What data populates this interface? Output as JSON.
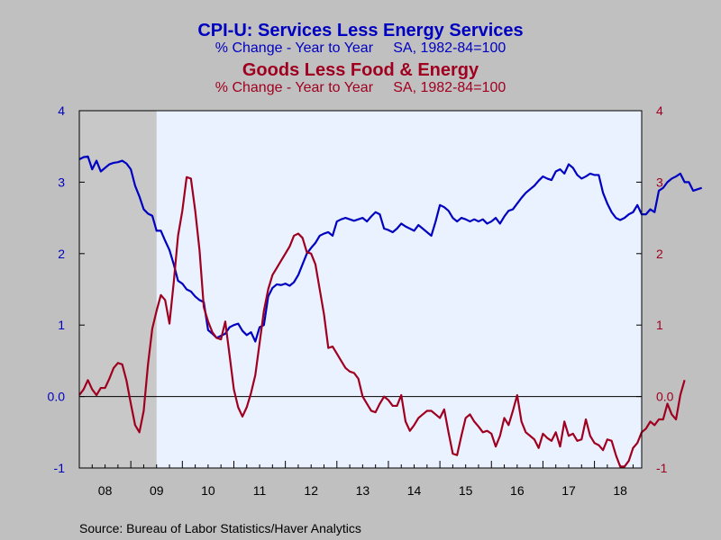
{
  "chart_data": {
    "type": "line",
    "source": "Source:  Bureau of Labor Statistics/Haver Analytics",
    "colors": {
      "services": "#0000c0",
      "goods": "#a00020",
      "recession": "#c8c8c8",
      "plot_bg": "#eaf2ff",
      "page_bg": "#c0c0c0"
    },
    "recession": {
      "start": 2008.0,
      "end": 2009.5
    },
    "xlim": [
      2008.0,
      2018.917
    ],
    "ylim": [
      -1,
      4
    ],
    "y_ticks": [
      4,
      3,
      2,
      1,
      0,
      -1
    ],
    "y_tick_labels": [
      "4",
      "3",
      "2",
      "1",
      "0.0",
      "-1"
    ],
    "x_tick_labels": [
      "08",
      "09",
      "10",
      "11",
      "12",
      "13",
      "14",
      "15",
      "16",
      "17",
      "18"
    ],
    "series": [
      {
        "key": "services",
        "title": "CPI-U: Services Less Energy Services",
        "subtitle": "% Change - Year to Year     SA, 1982-84=100",
        "axis": "left",
        "values": [
          3.32,
          3.35,
          3.36,
          3.18,
          3.3,
          3.15,
          3.2,
          3.25,
          3.27,
          3.28,
          3.3,
          3.26,
          3.18,
          2.95,
          2.8,
          2.62,
          2.56,
          2.53,
          2.32,
          2.32,
          2.18,
          2.05,
          1.85,
          1.62,
          1.58,
          1.5,
          1.47,
          1.4,
          1.35,
          1.32,
          0.93,
          0.88,
          0.82,
          0.85,
          0.88,
          0.97,
          1.0,
          1.02,
          0.92,
          0.86,
          0.9,
          0.77,
          0.97,
          1.0,
          1.4,
          1.52,
          1.57,
          1.56,
          1.58,
          1.55,
          1.6,
          1.7,
          1.85,
          2.0,
          2.08,
          2.15,
          2.25,
          2.28,
          2.3,
          2.25,
          2.45,
          2.48,
          2.5,
          2.48,
          2.46,
          2.48,
          2.5,
          2.45,
          2.52,
          2.58,
          2.55,
          2.35,
          2.33,
          2.3,
          2.35,
          2.42,
          2.38,
          2.35,
          2.32,
          2.4,
          2.35,
          2.3,
          2.25,
          2.45,
          2.68,
          2.65,
          2.6,
          2.5,
          2.45,
          2.5,
          2.48,
          2.45,
          2.48,
          2.45,
          2.48,
          2.42,
          2.45,
          2.5,
          2.42,
          2.52,
          2.6,
          2.62,
          2.7,
          2.78,
          2.85,
          2.9,
          2.95,
          3.02,
          3.08,
          3.05,
          3.03,
          3.15,
          3.18,
          3.12,
          3.25,
          3.2,
          3.1,
          3.05,
          3.08,
          3.12,
          3.1,
          3.1,
          2.85,
          2.7,
          2.58,
          2.5,
          2.47,
          2.5,
          2.55,
          2.58,
          2.68,
          2.55,
          2.55,
          2.62,
          2.58,
          2.88,
          2.92,
          3.0,
          3.05,
          3.08,
          3.12,
          3.0,
          3.0,
          2.88,
          2.9,
          2.92
        ]
      },
      {
        "key": "goods",
        "title": "Goods Less Food & Energy",
        "subtitle": "% Change - Year to Year     SA, 1982-84=100",
        "axis": "right",
        "values": [
          0.02,
          0.1,
          0.23,
          0.1,
          0.02,
          0.12,
          0.12,
          0.25,
          0.4,
          0.47,
          0.45,
          0.22,
          -0.1,
          -0.4,
          -0.5,
          -0.2,
          0.45,
          0.95,
          1.2,
          1.42,
          1.35,
          1.02,
          1.6,
          2.25,
          2.6,
          3.07,
          3.05,
          2.6,
          2.05,
          1.25,
          1.05,
          0.9,
          0.82,
          0.8,
          1.05,
          0.58,
          0.1,
          -0.15,
          -0.28,
          -0.15,
          0.05,
          0.3,
          0.75,
          1.2,
          1.5,
          1.7,
          1.8,
          1.9,
          2.0,
          2.1,
          2.25,
          2.28,
          2.22,
          2.02,
          2.0,
          1.85,
          1.5,
          1.15,
          0.68,
          0.7,
          0.6,
          0.5,
          0.4,
          0.35,
          0.33,
          0.25,
          0.0,
          -0.1,
          -0.2,
          -0.22,
          -0.1,
          0.0,
          -0.05,
          -0.13,
          -0.13,
          0.02,
          -0.35,
          -0.48,
          -0.4,
          -0.3,
          -0.25,
          -0.2,
          -0.2,
          -0.25,
          -0.3,
          -0.18,
          -0.5,
          -0.8,
          -0.82,
          -0.55,
          -0.3,
          -0.25,
          -0.35,
          -0.42,
          -0.5,
          -0.48,
          -0.52,
          -0.7,
          -0.55,
          -0.3,
          -0.4,
          -0.2,
          0.02,
          -0.35,
          -0.5,
          -0.55,
          -0.6,
          -0.72,
          -0.52,
          -0.58,
          -0.62,
          -0.5,
          -0.7,
          -0.35,
          -0.55,
          -0.52,
          -0.62,
          -0.6,
          -0.32,
          -0.55,
          -0.65,
          -0.68,
          -0.75,
          -0.6,
          -0.62,
          -0.82,
          -0.98,
          -0.98,
          -0.9,
          -0.72,
          -0.65,
          -0.5,
          -0.45,
          -0.35,
          -0.4,
          -0.32,
          -0.32,
          -0.1,
          -0.25,
          -0.32,
          0.02,
          0.23
        ]
      }
    ]
  }
}
